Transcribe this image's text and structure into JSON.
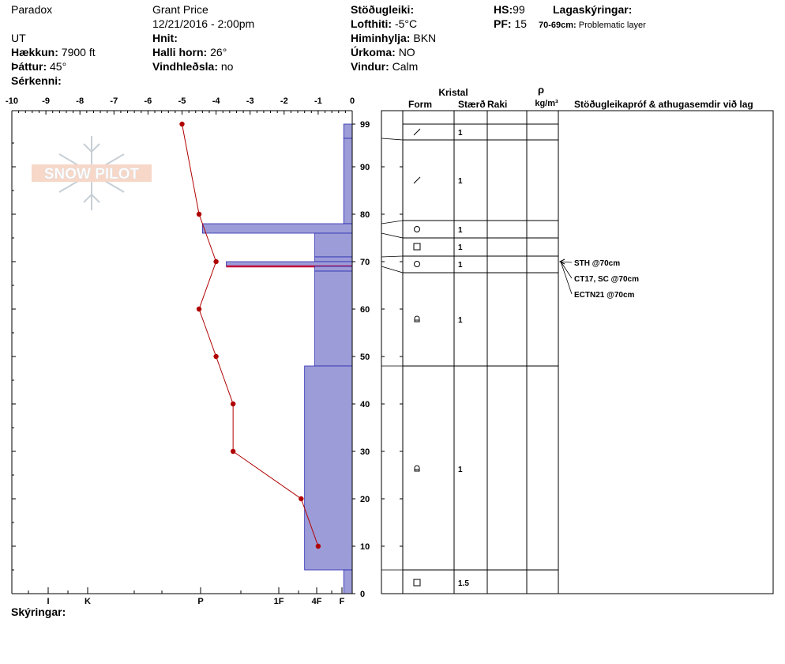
{
  "header": {
    "location": "Paradox",
    "observer": "Grant  Price",
    "datetime": "12/21/2016 - 2:00pm",
    "state": "UT",
    "coords_label": "Hnit:",
    "elevation_label": "Hækkun:",
    "elevation_value": "7900 ft",
    "aspect_label": "Þáttur:",
    "aspect_value": "45°",
    "slope_label": "Halli horn:",
    "slope_value": "26°",
    "wind_loading_label": "Vindhleðsla:",
    "wind_loading_value": "no",
    "features_label": "Sérkenni:",
    "stability_label": "Stöðugleiki:",
    "air_temp_label": "Lofthiti:",
    "air_temp_value": "-5°C",
    "sky_label": "Himinhylja:",
    "sky_value": "BKN",
    "precip_label": "Úrkoma:",
    "precip_value": "NO",
    "wind_label": "Vindur:",
    "wind_value": "Calm",
    "hs_label": "HS:",
    "hs_value": "99",
    "pf_label": "PF:",
    "pf_value": "15",
    "legend_label": "Lagaskýringar:",
    "legend_range": "70-69cm:",
    "legend_text": "Problematic layer"
  },
  "footer": {
    "notes_label": "Skýringar:"
  },
  "table": {
    "kristal_label": "Kristal",
    "form_label": "Form",
    "size_label": "Stærð",
    "moisture_label": "Raki",
    "rho_label": "ρ",
    "density_unit": "kg/m³",
    "comments_label": "Stöðugleikapróf & athugasemdir við lag"
  },
  "logo": {
    "text": "SNOW PILOT"
  },
  "chart_data": {
    "type": "snow-profile",
    "temperature_axis": {
      "ticks": [
        -10,
        -9,
        -8,
        -7,
        -6,
        -5,
        -4,
        -3,
        -2,
        -1,
        0
      ],
      "range": [
        -10,
        0
      ]
    },
    "height_axis": {
      "ticks": [
        0,
        10,
        20,
        30,
        40,
        50,
        60,
        70,
        80,
        90,
        99
      ],
      "range": [
        0,
        99
      ]
    },
    "hardness_axis": {
      "labels": [
        "I",
        "K",
        "P",
        "1F",
        "4F",
        "F"
      ]
    },
    "temperature_profile": [
      {
        "height": 99,
        "temp": -5.0
      },
      {
        "height": 80,
        "temp": -4.5
      },
      {
        "height": 70,
        "temp": -4.0
      },
      {
        "height": 60,
        "temp": -4.5
      },
      {
        "height": 50,
        "temp": -4.0
      },
      {
        "height": 40,
        "temp": -3.5
      },
      {
        "height": 30,
        "temp": -3.5
      },
      {
        "height": 20,
        "temp": -1.5
      },
      {
        "height": 10,
        "temp": -1.0
      }
    ],
    "layers": [
      {
        "top": 99,
        "bottom": 96,
        "hardness_temp": -0.25,
        "form": "slash",
        "size": "1"
      },
      {
        "top": 96,
        "bottom": 78,
        "hardness_temp": -0.25,
        "form": "slash",
        "size": "1"
      },
      {
        "top": 78,
        "bottom": 76,
        "hardness_temp": -4.4,
        "form": "circle",
        "size": "1"
      },
      {
        "top": 76,
        "bottom": 71,
        "hardness_temp": -1.1,
        "form": "square",
        "size": "1"
      },
      {
        "top": 71,
        "bottom": 70,
        "hardness_temp": -1.1,
        "form": "circle",
        "size": "1"
      },
      {
        "top": 70,
        "bottom": 69,
        "hardness_temp": -3.7,
        "form": "circle",
        "size": "1",
        "problematic": true
      },
      {
        "top": 69,
        "bottom": 68,
        "hardness_temp": -1.1,
        "form": "circle",
        "size": "1"
      },
      {
        "top": 68,
        "bottom": 48,
        "hardness_temp": -1.1,
        "form": "cup",
        "size": "1"
      },
      {
        "top": 48,
        "bottom": 5,
        "hardness_temp": -1.4,
        "form": "cup",
        "size": "1"
      },
      {
        "top": 5,
        "bottom": 0,
        "hardness_temp": -0.25,
        "form": "square",
        "size": "1.5"
      }
    ],
    "tests": [
      {
        "height": 70,
        "text": "STH @70cm"
      },
      {
        "height": 70,
        "text": "CT17, SC @70cm"
      },
      {
        "height": 70,
        "text": "ECTN21 @70cm"
      }
    ],
    "colors": {
      "hardness_fill": "#9c9cd8",
      "hardness_stroke": "#2a2ab0",
      "temp_line": "#b00000",
      "problem_line": "#c0003a"
    }
  }
}
